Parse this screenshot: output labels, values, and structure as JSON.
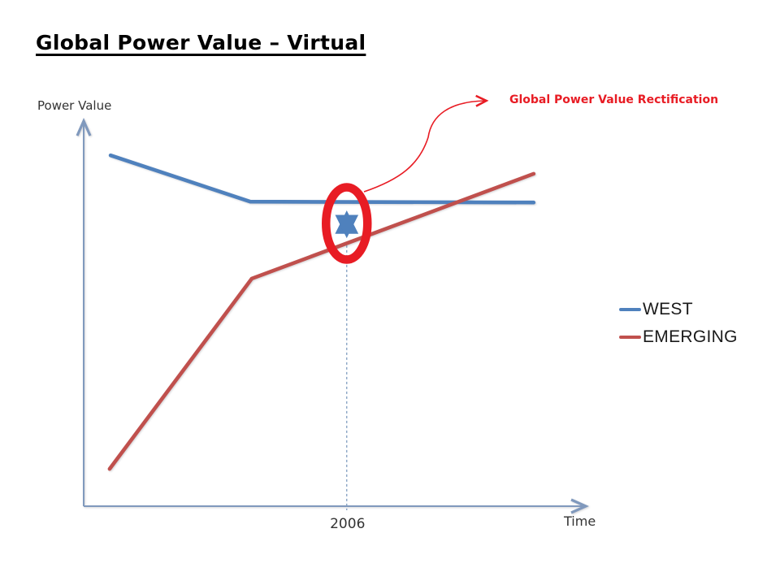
{
  "title": "Global Power Value – Virtual",
  "annotation": {
    "label": "Global Power Value Rectification",
    "color": "#e81c24"
  },
  "legend": [
    {
      "label": "WEST",
      "color": "#4f81bd"
    },
    {
      "label": "EMERGING",
      "color": "#c0504d"
    }
  ],
  "chart_data": {
    "type": "line",
    "title": "Global Power Value – Virtual",
    "xlabel": "Time",
    "ylabel": "Power Value",
    "x_tick_labels": [
      "2006"
    ],
    "axes": {
      "color": "#8099bd",
      "x_range": [
        0,
        1
      ],
      "y_range": [
        0,
        1
      ],
      "units": "relative (conceptual, unlabeled axes)",
      "grid": false
    },
    "series": [
      {
        "name": "WEST",
        "color": "#4f81bd",
        "points": [
          [
            0.053,
            0.894
          ],
          [
            0.328,
            0.776
          ],
          [
            0.886,
            0.774
          ]
        ]
      },
      {
        "name": "EMERGING",
        "color": "#c0504d",
        "points": [
          [
            0.051,
            0.095
          ],
          [
            0.331,
            0.58
          ],
          [
            0.886,
            0.847
          ]
        ]
      }
    ],
    "marker": {
      "x": 0.518,
      "label": "2006",
      "style": "dashed",
      "line_color": "#7f9dc0",
      "from_y": 0,
      "to_y": 0.669
    },
    "gap_highlight": {
      "x": 0.518,
      "y_low": 0.669,
      "y_high": 0.774,
      "shape": "ellipse",
      "color": "#e81c24",
      "arrow_color": "#4f81bd",
      "meaning": "gap between WEST and EMERGING at 2006"
    },
    "legend_position": "right"
  }
}
